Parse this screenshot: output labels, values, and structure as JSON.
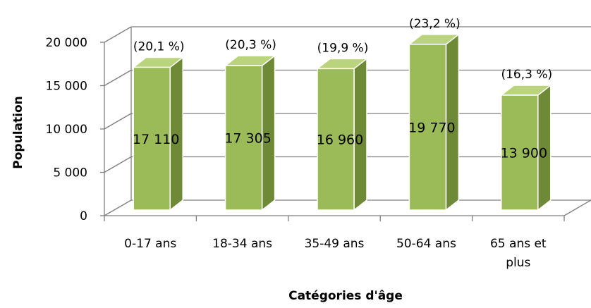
{
  "chart_data": {
    "type": "bar",
    "title": "",
    "xlabel": "Catégories d'âge",
    "ylabel": "Population",
    "categories": [
      [
        "0-17 ans"
      ],
      [
        "18-34 ans"
      ],
      [
        "35-49 ans"
      ],
      [
        "50-64 ans"
      ],
      [
        "65 ans et",
        "plus"
      ]
    ],
    "values": [
      17110,
      17305,
      16960,
      19770,
      13900
    ],
    "value_labels": [
      "17 110",
      "17 305",
      "16 960",
      "19 770",
      "13 900"
    ],
    "percent_labels": [
      "(20,1 %)",
      "(20,3 %)",
      "(19,9 %)",
      "(23,2 %)",
      "(16,3 %)"
    ],
    "yticks": [
      {
        "value": 0,
        "label": "0"
      },
      {
        "value": 5000,
        "label": "5 000"
      },
      {
        "value": 10000,
        "label": "10 000"
      },
      {
        "value": 15000,
        "label": "15 000"
      },
      {
        "value": 20000,
        "label": "20 000"
      }
    ],
    "ylim": [
      0,
      20000
    ],
    "grid": true,
    "legend": "none",
    "style": "3d-column",
    "colors": {
      "bar_front": "#9bbb59",
      "bar_side": "#6e8a36",
      "bar_top": "#b9d47d",
      "bar_outline": "#ffffff",
      "grid": "#7f7f7f",
      "wall": "#ffffff"
    }
  }
}
